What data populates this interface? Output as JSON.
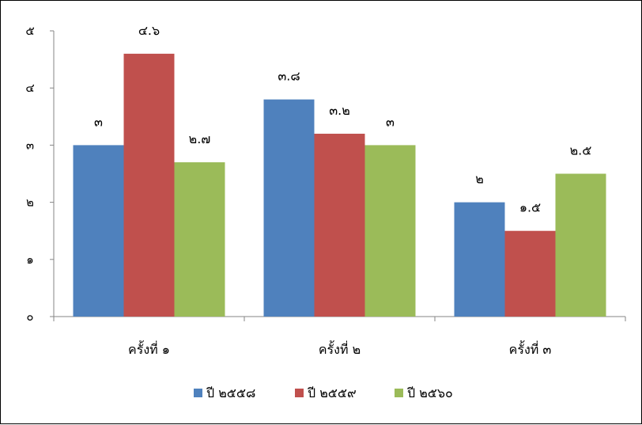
{
  "chart_data": {
    "type": "bar",
    "title": "",
    "xlabel": "",
    "ylabel": "",
    "categories": [
      "ครั้งที่ ๑",
      "ครั้งที่ ๒",
      "ครั้งที่ ๓"
    ],
    "series": [
      {
        "name": "ปี ๒๕๕๘",
        "color": "#4F81BD",
        "values": [
          3,
          3.8,
          2
        ],
        "labels": [
          "๓",
          "๓.๘",
          "๒"
        ]
      },
      {
        "name": "ปี ๒๕๕๙",
        "color": "#C0504D",
        "values": [
          4.6,
          3.2,
          1.5
        ],
        "labels": [
          "๔.๖",
          "๓.๒",
          "๑.๕"
        ]
      },
      {
        "name": "ปี ๒๕๖๐",
        "color": "#9BBB59",
        "values": [
          2.7,
          3,
          2.5
        ],
        "labels": [
          "๒.๗",
          "๓",
          "๒.๕"
        ]
      }
    ],
    "ylim": [
      0,
      5
    ],
    "y_ticks": [
      0,
      1,
      2,
      3,
      4,
      5
    ],
    "y_tick_labels": [
      "๐",
      "๑",
      "๒",
      "๓",
      "๔",
      "๕"
    ],
    "grid": false,
    "legend_position": "bottom"
  }
}
